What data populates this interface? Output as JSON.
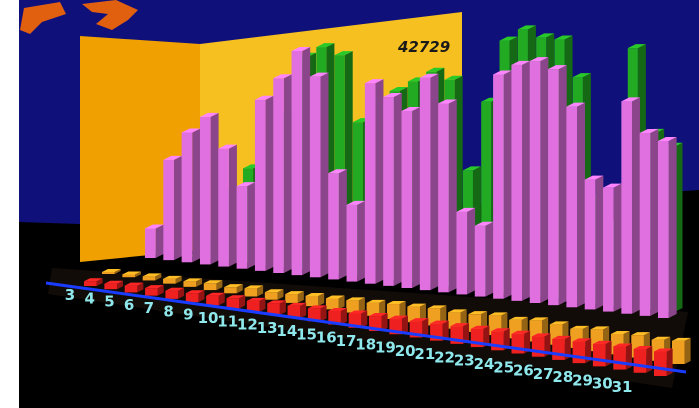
{
  "chart_data": {
    "type": "bar",
    "dimension": "3d",
    "x": [
      3,
      4,
      5,
      6,
      7,
      8,
      9,
      10,
      11,
      12,
      13,
      14,
      15,
      16,
      17,
      18,
      19,
      20,
      21,
      22,
      23,
      24,
      25,
      26,
      27,
      28,
      29,
      30,
      31
    ],
    "tick_labels": [
      "3",
      "4",
      "5",
      "6",
      "7",
      "8",
      "9",
      "10",
      "11",
      "12",
      "13",
      "14",
      "15",
      "16",
      "17",
      "18",
      "19",
      "20",
      "21",
      "22",
      "23",
      "24",
      "25",
      "26",
      "27",
      "28",
      "29",
      "30",
      "31"
    ],
    "annotations": [
      {
        "text": "42729"
      }
    ],
    "series": [
      {
        "color": "#e070e0",
        "values": [
          5000,
          17000,
          22000,
          25000,
          20000,
          14000,
          29000,
          33000,
          38000,
          34000,
          18000,
          13000,
          34000,
          32000,
          30000,
          36000,
          32000,
          14000,
          12000,
          38000,
          40000,
          41000,
          40000,
          34000,
          22000,
          21000,
          36000,
          31000,
          30000
        ]
      },
      {
        "color": "#22aa22",
        "values": [
          0,
          0,
          0,
          4000,
          12000,
          16000,
          20000,
          26000,
          36000,
          38000,
          37000,
          26000,
          30000,
          32000,
          34000,
          36000,
          35000,
          20000,
          32000,
          42729,
          45000,
          44000,
          44000,
          38000,
          18000,
          14000,
          44000,
          30000,
          28000
        ]
      },
      {
        "color": "#f0a020",
        "values": [
          300,
          400,
          600,
          700,
          800,
          1000,
          900,
          1200,
          1100,
          1300,
          1500,
          1600,
          1800,
          1900,
          2200,
          2300,
          2500,
          2400,
          2600,
          2900,
          2700,
          3100,
          3000,
          2800,
          3200,
          3000,
          3300,
          3100,
          3400
        ]
      },
      {
        "color": "#ee2020",
        "values": [
          700,
          800,
          1000,
          1100,
          1200,
          1300,
          1400,
          1500,
          1600,
          1700,
          1800,
          1900,
          2000,
          2100,
          2200,
          2300,
          2400,
          2500,
          2600,
          2700,
          2800,
          2900,
          3000,
          3100,
          3200,
          3300,
          3400,
          3500,
          3600
        ]
      }
    ],
    "colors": {
      "wall_back": "#f5c020",
      "wall_left": "#f0a000",
      "background": "#10107a",
      "floor": "#000000",
      "axis_line": "#1a3cff",
      "tick_label": "#8fe8ec",
      "logo": "#e06010"
    }
  }
}
